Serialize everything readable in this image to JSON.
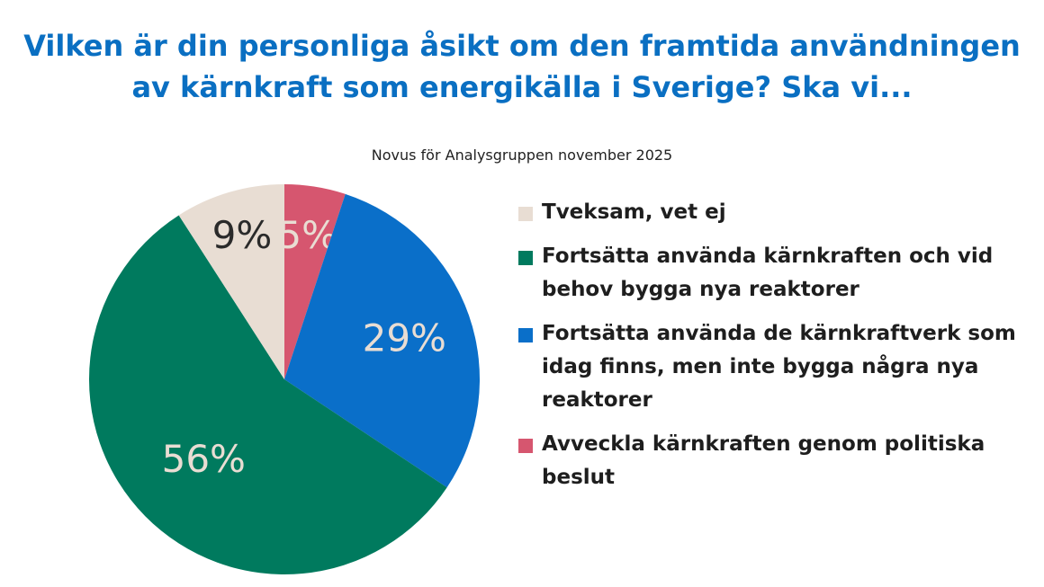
{
  "title_line1": "Vilken är din personliga åsikt om den framtida användningen",
  "title_line2": "av kärnkraft som energikälla i Sverige? Ska vi...",
  "subtitle": "Novus för Analysgruppen november 2025",
  "chart_data": {
    "type": "pie",
    "start": "top",
    "direction": "clockwise",
    "slices": [
      {
        "name": "Avveckla kärnkraften genom politiska beslut",
        "value": 5,
        "label": "5%",
        "color": "#d6566f",
        "label_color": "#e9ddd3"
      },
      {
        "name": "Fortsätta använda de kärnkraftverk som idag finns, men inte bygga några nya reaktorer",
        "value": 29,
        "label": "29%",
        "color": "#0a6fc9",
        "label_color": "#e9ddd3"
      },
      {
        "name": "Fortsätta använda kärnkraften och vid behov bygga nya reaktorer",
        "value": 56,
        "label": "56%",
        "color": "#007a5e",
        "label_color": "#e9ddd3"
      },
      {
        "name": "Tveksam, vet ej",
        "value": 9,
        "label": "9%",
        "color": "#e8ddd3",
        "label_color": "#2a2a2a"
      }
    ],
    "legend": {
      "placement": "right",
      "items": [
        {
          "label": "Tveksam, vet ej",
          "color": "#e8ddd3"
        },
        {
          "label": "Fortsätta använda kärnkraften och vid behov bygga nya reaktorer",
          "color": "#007a5e"
        },
        {
          "label": "Fortsätta använda de kärnkraftverk som idag finns, men inte bygga några nya reaktorer",
          "color": "#0a6fc9"
        },
        {
          "label": "Avveckla kärnkraften genom politiska beslut",
          "color": "#d6566f"
        }
      ]
    }
  }
}
